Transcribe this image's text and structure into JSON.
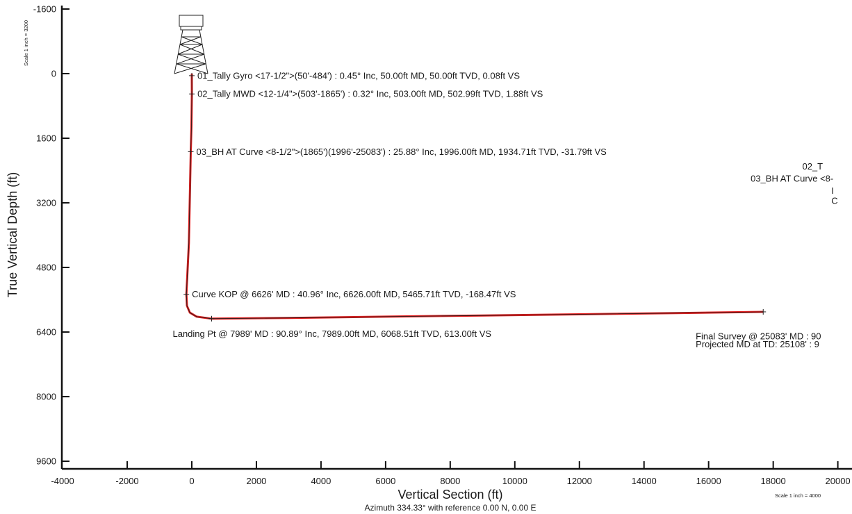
{
  "chart_data": {
    "type": "line",
    "ylabel": "True Vertical Depth (ft)",
    "xlabel": "Vertical Section (ft)",
    "subtitle": "Azimuth 334.33° with reference 0.00 N, 0.00 E",
    "y_scale_note": "Scale 1 inch = 3200",
    "x_scale_note": "Scale 1 inch = 4000",
    "xlim": [
      -4000,
      20000
    ],
    "ylim": [
      -1600,
      9600
    ],
    "y_inverted": true,
    "x_ticks": [
      -4000,
      -2000,
      0,
      2000,
      4000,
      6000,
      8000,
      10000,
      12000,
      14000,
      16000,
      18000,
      20000
    ],
    "y_ticks": [
      -1600,
      0,
      1600,
      3200,
      4800,
      6400,
      8000,
      9600
    ],
    "y_tick_labels": [
      "-1600",
      "0",
      "1600",
      "3200",
      "4800",
      "6400",
      "8000",
      "9600"
    ],
    "x_tick_labels": [
      "-4000",
      "-2000",
      "0",
      "2000",
      "4000",
      "6000",
      "8000",
      "10000",
      "12000",
      "14000",
      "16000",
      "18000",
      "20000"
    ],
    "colors": {
      "path": "#e02020",
      "path_core": "#111111",
      "axis": "#111111"
    },
    "series": [
      {
        "x": [
          0,
          0.08,
          1.88,
          -10,
          -31.79,
          -90,
          -168.47,
          -150,
          -60,
          150,
          613,
          3000,
          6000,
          9000,
          12000,
          15000,
          17690
        ],
        "y": [
          0,
          50,
          503,
          1300,
          1934.71,
          4200,
          5465.71,
          5750,
          5920,
          6020,
          6068.51,
          6050,
          6020,
          5990,
          5960,
          5930,
          5900
        ]
      }
    ],
    "markers": [
      {
        "x": 0.08,
        "y": 50
      },
      {
        "x": 1.88,
        "y": 503
      },
      {
        "x": -31.79,
        "y": 1934.71
      },
      {
        "x": -168.47,
        "y": 5465.71
      },
      {
        "x": 613,
        "y": 6068.51
      },
      {
        "x": 17690,
        "y": 5900
      }
    ],
    "annotations": [
      {
        "text": "01_Tally Gyro <17-1/2\">(50'-484') : 0.45° Inc, 50.00ft MD, 50.00ft TVD, 0.08ft VS",
        "x": 0.08,
        "y": 50,
        "anchor": "right"
      },
      {
        "text": "02_Tally MWD <12-1/4\">(503'-1865') : 0.32° Inc, 503.00ft MD, 502.99ft TVD, 1.88ft VS",
        "x": 1.88,
        "y": 503,
        "anchor": "right"
      },
      {
        "text": "03_BH AT Curve <8-1/2\">(1865')(1996'-25083') : 25.88° Inc, 1996.00ft MD, 1934.71ft TVD, -31.79ft VS",
        "x": -31.79,
        "y": 1934.71,
        "anchor": "right"
      },
      {
        "text": "Curve KOP @ 6626' MD : 40.96° Inc, 6626.00ft MD, 5465.71ft TVD, -168.47ft VS",
        "x": -168.47,
        "y": 5465.71,
        "anchor": "right"
      },
      {
        "text": "Landing Pt @ 7989' MD : 90.89° Inc, 7989.00ft MD, 6068.51ft TVD, 613.00ft VS",
        "x": 613,
        "y": 6068.51,
        "anchor": "below"
      }
    ],
    "clipped_text": [
      {
        "text": "02_T",
        "x": 18900,
        "y": 2300
      },
      {
        "text": "03_BH AT Curve <8-",
        "x": 17300,
        "y": 2600
      },
      {
        "text": "I",
        "x": 19800,
        "y": 2900
      },
      {
        "text": "C",
        "x": 19800,
        "y": 3150
      },
      {
        "text": "Final Survey @ 25083' MD : 90",
        "x": 15600,
        "y": 6500
      },
      {
        "text": "Projected MD at TD: 25108' : 9",
        "x": 15600,
        "y": 6700
      }
    ]
  }
}
